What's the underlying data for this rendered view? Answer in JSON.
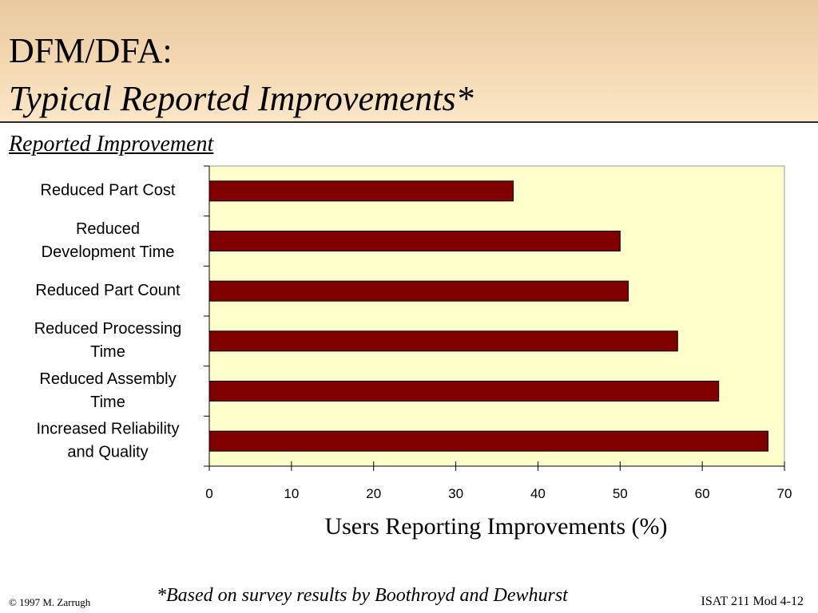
{
  "slide": {
    "title_line1": "DFM/DFA:",
    "title_line2": "Typical Reported Improvements*",
    "section_heading": "Reported Improvement",
    "footnote": "*Based on survey results by Boothroyd and Dewhurst",
    "copyright": "© 1997 M. Zarrugh",
    "slide_id": "ISAT 211 Mod 4-12"
  },
  "colors": {
    "bar": "#800000",
    "plot_background": "#ffffcc"
  },
  "chart_data": {
    "type": "bar",
    "orientation": "horizontal",
    "categories": [
      [
        "Reduced Part Cost"
      ],
      [
        "Reduced",
        "Development Time"
      ],
      [
        "Reduced Part Count"
      ],
      [
        "Reduced Processing",
        "Time"
      ],
      [
        "Reduced Assembly",
        "Time"
      ],
      [
        "Increased Reliability",
        "and Quality"
      ]
    ],
    "values": [
      37,
      50,
      51,
      57,
      62,
      68
    ],
    "xlabel": "Users Reporting Improvements (%)",
    "xlim": [
      0,
      70
    ],
    "xticks": [
      0,
      10,
      20,
      30,
      40,
      50,
      60,
      70
    ],
    "grid": false,
    "legend": "none"
  }
}
